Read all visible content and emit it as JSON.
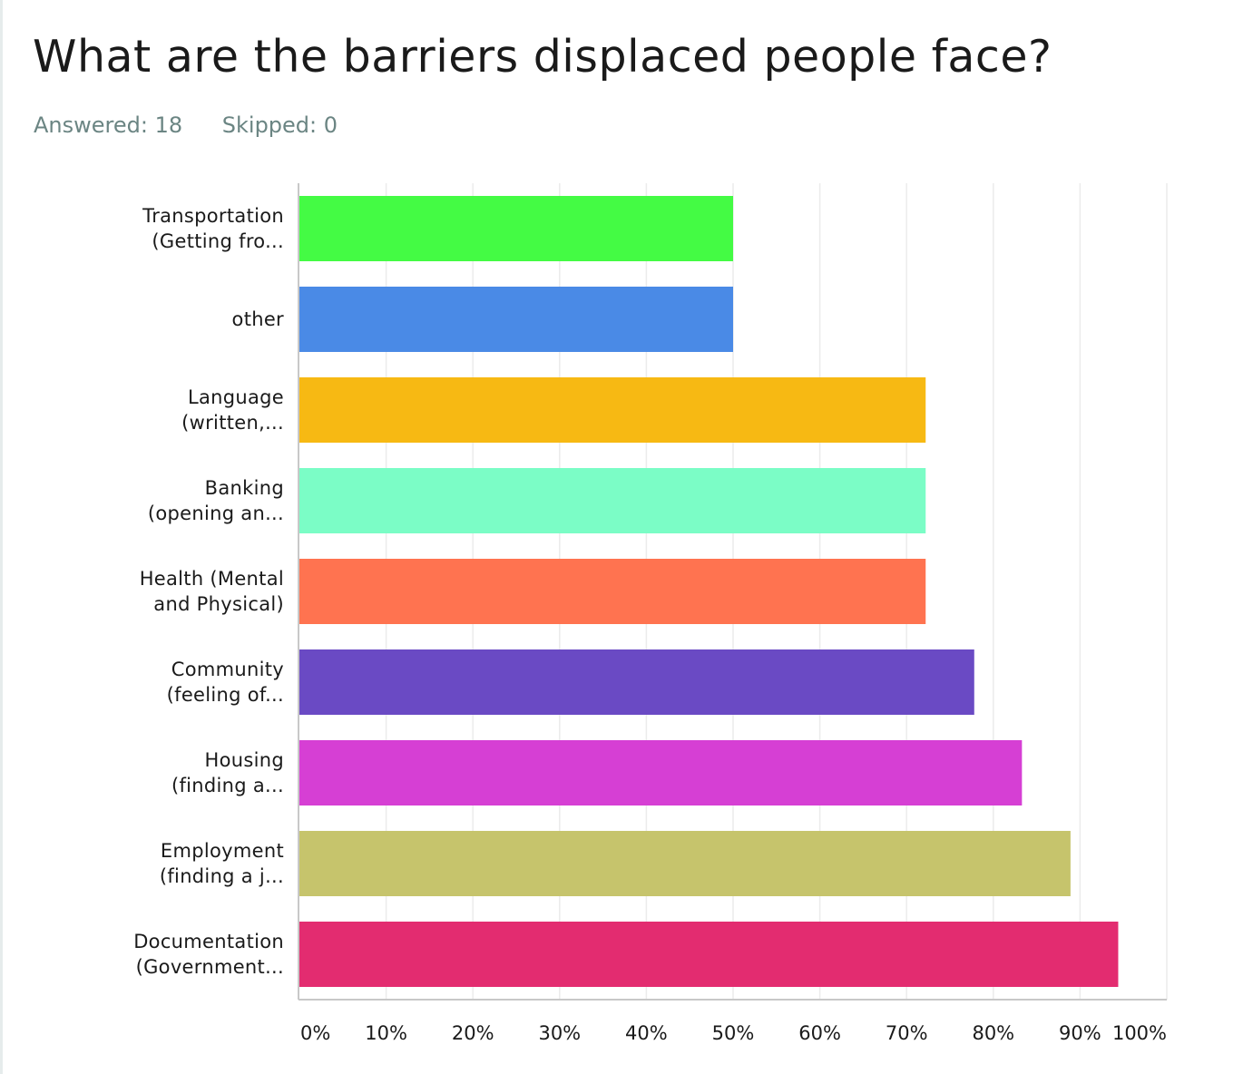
{
  "header": {
    "title": "What are the barriers displaced people face?",
    "answered": "Answered: 18",
    "skipped": "Skipped: 0"
  },
  "chart_data": {
    "type": "bar",
    "orientation": "horizontal",
    "title": "What are the barriers displaced people face?",
    "xlabel": "",
    "ylabel": "",
    "xlim": [
      0,
      100
    ],
    "grid": true,
    "categories": [
      [
        "Transportation",
        "(Getting fro..."
      ],
      [
        "other"
      ],
      [
        "Language",
        "(written,..."
      ],
      [
        "Banking",
        "(opening an..."
      ],
      [
        "Health (Mental",
        "and Physical)"
      ],
      [
        "Community",
        "(feeling of..."
      ],
      [
        "Housing",
        "(finding a..."
      ],
      [
        "Employment",
        "(finding a j..."
      ],
      [
        "Documentation",
        "(Government..."
      ]
    ],
    "values": [
      50.0,
      50.0,
      72.2,
      72.2,
      72.2,
      77.8,
      83.3,
      88.9,
      94.4
    ],
    "colors": [
      "#44fb44",
      "#4a8ae6",
      "#f7b913",
      "#7bfdc6",
      "#ff7350",
      "#6a4ac4",
      "#d63fd4",
      "#c6c46c",
      "#e32c70"
    ],
    "ticks": [
      0,
      10,
      20,
      30,
      40,
      50,
      60,
      70,
      80,
      90,
      100
    ],
    "tick_labels": [
      "0%",
      "10%",
      "20%",
      "30%",
      "40%",
      "50%",
      "60%",
      "70%",
      "80%",
      "90%",
      "100%"
    ]
  }
}
